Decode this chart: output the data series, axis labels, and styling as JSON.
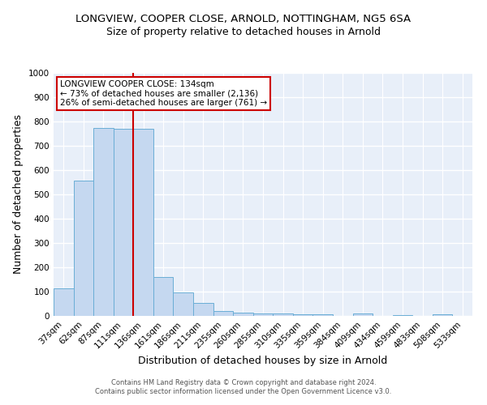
{
  "title": "LONGVIEW, COOPER CLOSE, ARNOLD, NOTTINGHAM, NG5 6SA",
  "subtitle": "Size of property relative to detached houses in Arnold",
  "xlabel": "Distribution of detached houses by size in Arnold",
  "ylabel": "Number of detached properties",
  "categories": [
    "37sqm",
    "62sqm",
    "87sqm",
    "111sqm",
    "136sqm",
    "161sqm",
    "186sqm",
    "211sqm",
    "235sqm",
    "260sqm",
    "285sqm",
    "310sqm",
    "335sqm",
    "359sqm",
    "384sqm",
    "409sqm",
    "434sqm",
    "459sqm",
    "483sqm",
    "508sqm",
    "533sqm"
  ],
  "values": [
    113,
    558,
    775,
    770,
    770,
    160,
    98,
    55,
    20,
    13,
    10,
    10,
    8,
    6,
    0,
    10,
    0,
    5,
    0,
    8,
    0
  ],
  "bar_color": "#c5d8f0",
  "bar_edge_color": "#6aaed6",
  "vline_color": "#cc0000",
  "vline_x_index": 4,
  "annotation_line1": "LONGVIEW COOPER CLOSE: 134sqm",
  "annotation_line2": "← 73% of detached houses are smaller (2,136)",
  "annotation_line3": "26% of semi-detached houses are larger (761) →",
  "annotation_box_facecolor": "white",
  "annotation_box_edgecolor": "#cc0000",
  "bg_color": "#e8eff9",
  "grid_color": "white",
  "footer_line1": "Contains HM Land Registry data © Crown copyright and database right 2024.",
  "footer_line2": "Contains public sector information licensed under the Open Government Licence v3.0.",
  "ylim": [
    0,
    1000
  ],
  "yticks": [
    0,
    100,
    200,
    300,
    400,
    500,
    600,
    700,
    800,
    900,
    1000
  ],
  "title_fontsize": 9.5,
  "subtitle_fontsize": 9,
  "axis_label_fontsize": 9,
  "tick_fontsize": 7.5,
  "annotation_fontsize": 7.5,
  "footer_fontsize": 6
}
